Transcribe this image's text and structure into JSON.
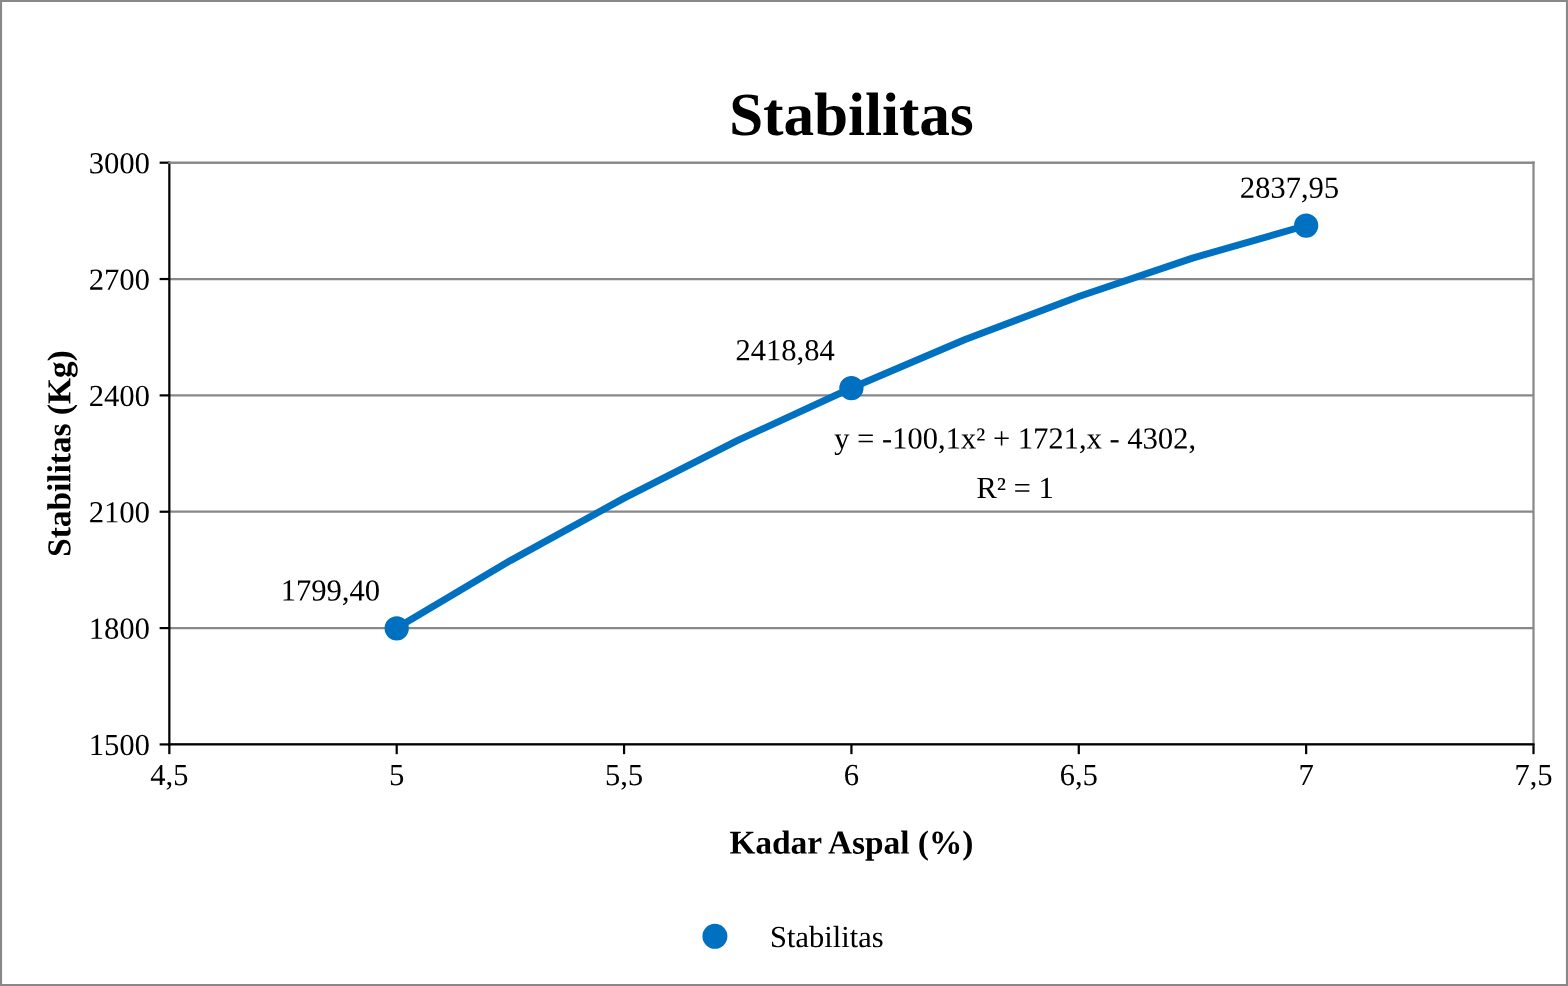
{
  "chart_data": {
    "type": "scatter",
    "title": "Stabilitas",
    "xlabel": "Kadar Aspal (%)",
    "ylabel": "Stabilitas (Kg)",
    "series": [
      {
        "name": "Stabilitas",
        "color": "#0070c0",
        "x": [
          5,
          6,
          7
        ],
        "values": [
          1799.4,
          2418.84,
          2837.95
        ],
        "value_labels": [
          "1799,40",
          "2418,84",
          "2837,95"
        ],
        "marker": "circle"
      },
      {
        "type": "line",
        "color": "#0070c0",
        "x": [
          5,
          5.25,
          5.5,
          5.75,
          6,
          6.25,
          6.5,
          6.75,
          7
        ],
        "values": [
          1800,
          1974,
          2135,
          2284,
          2419,
          2544,
          2655,
          2754,
          2838
        ],
        "line_style": "solid"
      }
    ],
    "annotations": [
      "y = -100,1x² + 1721,x - 4302,",
      "R² = 1"
    ],
    "xlim": [
      4.5,
      7.5
    ],
    "xticks": [
      {
        "value": 4.5,
        "label": "4,5"
      },
      5,
      {
        "value": 5.5,
        "label": "5,5"
      },
      6,
      {
        "value": 6.5,
        "label": "6,5"
      },
      7,
      {
        "value": 7.5,
        "label": "7,5"
      }
    ],
    "ylim": [
      1500,
      3000
    ],
    "yticks": [
      1500,
      1800,
      2100,
      2400,
      2700,
      3000
    ],
    "grid": "y",
    "legend": "bottom"
  }
}
